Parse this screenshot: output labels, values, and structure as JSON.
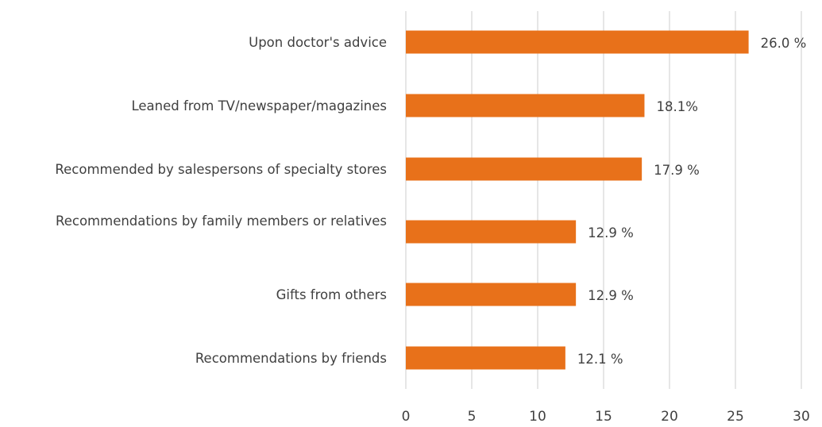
{
  "chart_data": {
    "type": "bar",
    "orientation": "horizontal",
    "categories": [
      "Upon doctor's advice",
      "Leaned from TV/newspaper/magazines",
      "Recommended by salespersons of specialty stores",
      "Recommendations by family members or relatives",
      "Gifts from others",
      "Recommendations by friends"
    ],
    "values": [
      26.0,
      18.1,
      17.9,
      12.9,
      12.9,
      12.1
    ],
    "value_labels": [
      "26.0 %",
      "18.1%",
      "17.9 %",
      "12.9 %",
      "12.9 %",
      "12.1 %"
    ],
    "xlim": [
      0,
      30
    ],
    "xticks": [
      "0",
      "5",
      "10",
      "15",
      "20",
      "25",
      "30"
    ],
    "grid": "vertical",
    "bar_color": "#E8711A",
    "title": "",
    "xlabel": "",
    "ylabel": ""
  }
}
